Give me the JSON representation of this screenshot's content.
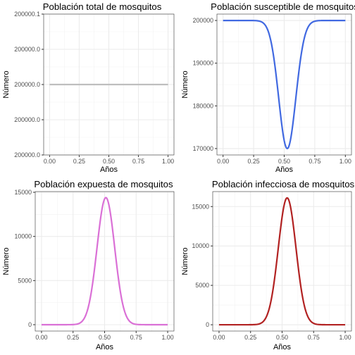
{
  "chart_data": [
    {
      "type": "line",
      "title": "Población total de mosquitos",
      "xlabel": "Años",
      "ylabel": "Número",
      "xlim": [
        -0.05,
        1.05
      ],
      "ylim": [
        199999.9,
        200000.1
      ],
      "x_ticks": [
        0,
        0.25,
        0.5,
        0.75,
        1
      ],
      "x_tick_labels": [
        "0.00",
        "0.25",
        "0.50",
        "0.75",
        "1.00"
      ],
      "y_ticks": [
        199999.9,
        199999.95,
        200000.0,
        200000.05,
        200000.1
      ],
      "y_tick_labels": [
        "200000.0",
        "200000.0",
        "200000.0",
        "200000.0",
        "200000.1"
      ],
      "grid": true,
      "legend": "none",
      "color": "#BEBEBE",
      "curve": {
        "kind": "constant",
        "value": 200000.0
      },
      "series": [
        {
          "x": [
            0,
            0.25,
            0.5,
            0.75,
            1
          ],
          "values": [
            200000,
            200000,
            200000,
            200000,
            200000
          ]
        }
      ]
    },
    {
      "type": "line",
      "title": "Población susceptible de mosquitos",
      "xlabel": "Años",
      "ylabel": "Número",
      "xlim": [
        -0.05,
        1.05
      ],
      "ylim": [
        168500,
        201500
      ],
      "x_ticks": [
        0,
        0.25,
        0.5,
        0.75,
        1
      ],
      "x_tick_labels": [
        "0.00",
        "0.25",
        "0.50",
        "0.75",
        "1.00"
      ],
      "y_ticks": [
        170000,
        180000,
        190000,
        200000
      ],
      "y_tick_labels": [
        "170000",
        "180000",
        "190000",
        "200000"
      ],
      "grid": true,
      "legend": "none",
      "color": "#4169E1",
      "curve": {
        "kind": "dip",
        "base": 200000,
        "peak": 170000,
        "center": 0.525,
        "width": 0.07
      },
      "series": [
        {
          "x": [
            0,
            0.25,
            0.4,
            0.5,
            0.525,
            0.6,
            0.75,
            1
          ],
          "values": [
            200000,
            199800,
            192000,
            172000,
            170000,
            184000,
            199500,
            200000
          ]
        }
      ]
    },
    {
      "type": "line",
      "title": "Población expuesta de mosquitos",
      "xlabel": "Años",
      "ylabel": "Número",
      "xlim": [
        -0.05,
        1.05
      ],
      "ylim": [
        -720,
        15080
      ],
      "x_ticks": [
        0,
        0.25,
        0.5,
        0.75,
        1
      ],
      "x_tick_labels": [
        "0.00",
        "0.25",
        "0.50",
        "0.75",
        "1.00"
      ],
      "y_ticks": [
        0,
        5000,
        10000,
        15000
      ],
      "y_tick_labels": [
        "0",
        "5000",
        "10000",
        "15000"
      ],
      "grid": true,
      "legend": "none",
      "color": "#DA70D6",
      "curve": {
        "kind": "peak",
        "base": 0,
        "peak": 14400,
        "center": 0.51,
        "width": 0.07
      },
      "series": [
        {
          "x": [
            0,
            0.25,
            0.4,
            0.51,
            0.6,
            0.75,
            1
          ],
          "values": [
            0,
            200,
            4500,
            14400,
            6500,
            250,
            0
          ]
        }
      ]
    },
    {
      "type": "line",
      "title": "Población infecciosa de mosquitos",
      "xlabel": "Años",
      "ylabel": "Número",
      "xlim": [
        -0.05,
        1.05
      ],
      "ylim": [
        -800,
        16900
      ],
      "x_ticks": [
        0,
        0.25,
        0.5,
        0.75,
        1
      ],
      "x_tick_labels": [
        "0.00",
        "0.25",
        "0.50",
        "0.75",
        "1.00"
      ],
      "y_ticks": [
        0,
        5000,
        10000,
        15000
      ],
      "y_tick_labels": [
        "0",
        "5000",
        "10000",
        "15000"
      ],
      "grid": true,
      "legend": "none",
      "color": "#B22222",
      "curve": {
        "kind": "peak",
        "base": 0,
        "peak": 16100,
        "center": 0.54,
        "width": 0.07
      },
      "series": [
        {
          "x": [
            0,
            0.25,
            0.4,
            0.54,
            0.65,
            0.75,
            1
          ],
          "values": [
            0,
            150,
            3500,
            16100,
            5500,
            600,
            0
          ]
        }
      ]
    }
  ]
}
